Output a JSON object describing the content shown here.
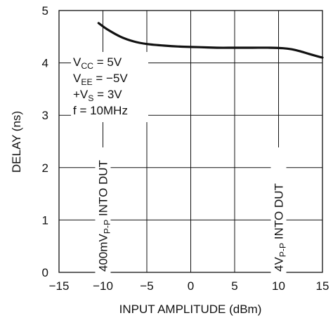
{
  "chart_data": {
    "type": "line",
    "xlabel": "INPUT AMPLITUDE (dBm)",
    "ylabel": "DELAY (ns)",
    "xlim": [
      -15,
      15
    ],
    "ylim": [
      0,
      5
    ],
    "x_ticks": [
      -15,
      -10,
      -5,
      0,
      5,
      10,
      15
    ],
    "y_ticks": [
      0,
      1,
      2,
      3,
      4,
      5
    ],
    "x_tick_labels": [
      "−15",
      "−10",
      "−5",
      "0",
      "5",
      "10",
      "15"
    ],
    "y_tick_labels": [
      "0",
      "1",
      "2",
      "3",
      "4",
      "5"
    ],
    "grid": true,
    "series": [
      {
        "x": [
          -10.5,
          -9.5,
          -8.0,
          -6.5,
          -5.0,
          -3.0,
          -1.0,
          1.0,
          3.0,
          5.0,
          7.0,
          9.0,
          10.5,
          11.5,
          12.5,
          13.5,
          15.0
        ],
        "y": [
          4.76,
          4.64,
          4.5,
          4.41,
          4.36,
          4.33,
          4.31,
          4.3,
          4.29,
          4.29,
          4.29,
          4.29,
          4.28,
          4.26,
          4.22,
          4.17,
          4.1
        ]
      }
    ],
    "annotations": {
      "conditions": [
        {
          "main": "V",
          "sub": "CC",
          "rest": " = 5V"
        },
        {
          "main": "V",
          "sub": "EE",
          "rest": " = −5V"
        },
        {
          "main": "+V",
          "sub": "S",
          "rest": " = 3V"
        },
        {
          "main": "f = 10MHz",
          "sub": "",
          "rest": ""
        }
      ],
      "left_marker": {
        "x": -10,
        "main": "400mV",
        "sub": "P-P",
        "rest": " INTO DUT"
      },
      "right_marker": {
        "x": 10,
        "main": "4V",
        "sub": "P-P",
        "rest": " INTO DUT"
      }
    },
    "line_color": "#111111",
    "grid_color": "#111111"
  }
}
